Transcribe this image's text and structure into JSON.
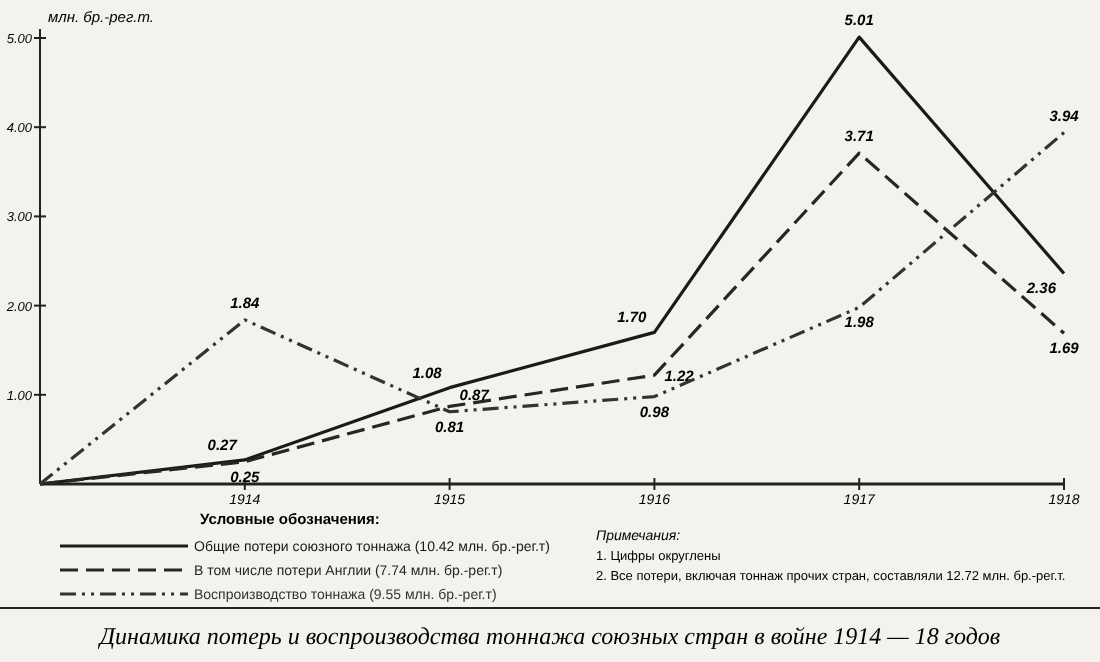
{
  "chart_data": {
    "type": "line",
    "title": "Динамика потерь и воспроизводства тоннажа союзных стран в войне 1914 — 18 годов",
    "ylabel": "млн. бр.-рег.т.",
    "legend_title": "Условные обозначения:",
    "legend": "bottom",
    "x": [
      1913,
      1914,
      1915,
      1916,
      1917,
      1918
    ],
    "xlim": [
      1913,
      1918
    ],
    "xticks": [
      1914,
      1915,
      1916,
      1917,
      1918
    ],
    "ylim": [
      0,
      5.1
    ],
    "yticks": [
      {
        "value": 1,
        "label": "1.00"
      },
      {
        "value": 2,
        "label": "2.00"
      },
      {
        "value": 3,
        "label": "3.00"
      },
      {
        "value": 4,
        "label": "4.00"
      },
      {
        "value": 5,
        "label": "5.00"
      }
    ],
    "series": [
      {
        "name": "Общие потери союзного тоннажа (10.42 млн. бр.-рег.т)",
        "color": "#1a1a1a",
        "line_style": "solid",
        "values": [
          0,
          0.27,
          1.08,
          1.7,
          5.01,
          2.36
        ],
        "value_labels": [
          null,
          "0.27",
          "1.08",
          "1.70",
          "5.01",
          "2.36"
        ]
      },
      {
        "name": "В том числе потери Англии (7.74 млн. бр.-рег.т)",
        "color": "#262626",
        "line_style": "dashed",
        "values": [
          0,
          0.25,
          0.87,
          1.22,
          3.71,
          1.69
        ],
        "value_labels": [
          null,
          "0.25",
          "0.87",
          "1.22",
          "3.71",
          "1.69"
        ]
      },
      {
        "name": "Воспроизводство тоннажа (9.55 млн. бр.-рег.т)",
        "color": "#333333",
        "line_style": "dotted",
        "values": [
          0,
          1.84,
          0.81,
          0.98,
          1.98,
          3.94
        ],
        "value_labels": [
          null,
          "1.84",
          "0.81",
          "0.98",
          "1.98",
          "3.94"
        ]
      }
    ],
    "annotations": [
      "Примечания:",
      "1. Цифры округлены",
      "2. Все потери, включая тоннаж прочих стран, составляли 12.72 млн. бр.-рег.т."
    ]
  }
}
